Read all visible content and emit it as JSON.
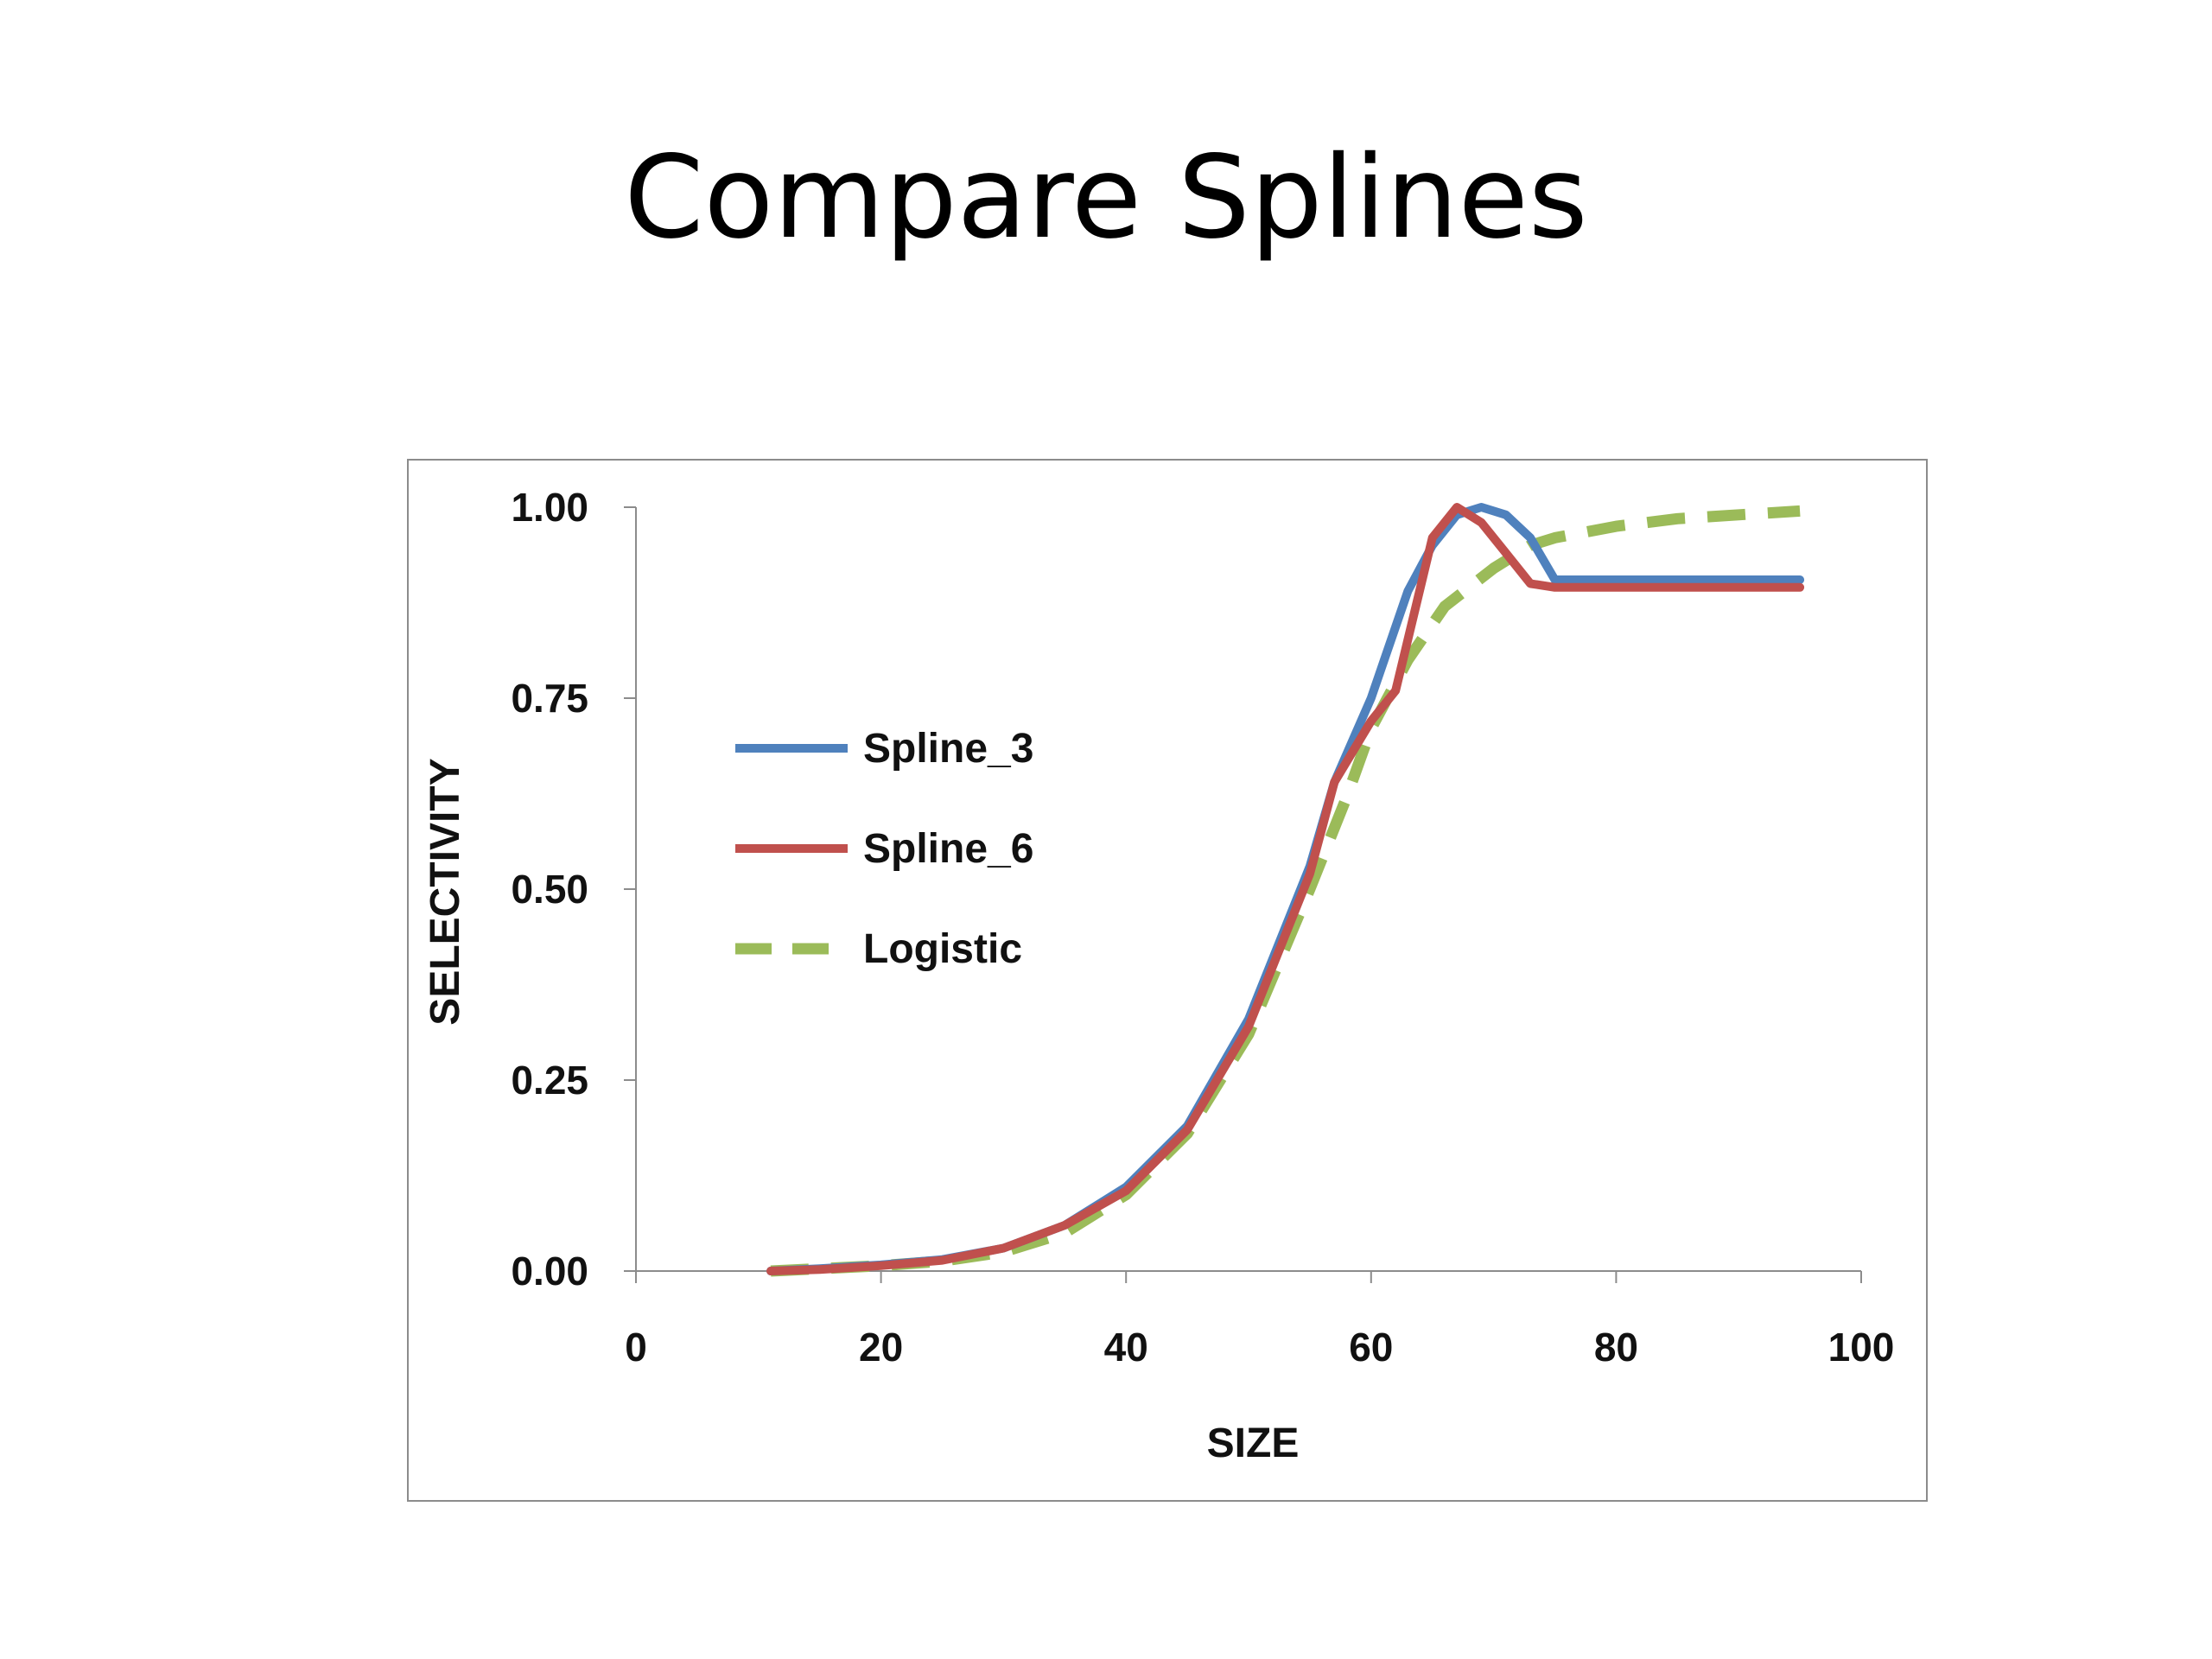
{
  "slide": {
    "title": "Compare Splines"
  },
  "chart_data": {
    "type": "line",
    "title": "",
    "xlabel": "SIZE",
    "ylabel": "SELECTIVITY",
    "xlim": [
      0,
      100
    ],
    "ylim": [
      0,
      1
    ],
    "x_ticks": [
      "0",
      "20",
      "40",
      "60",
      "80",
      "100"
    ],
    "y_ticks": [
      "0.00",
      "0.25",
      "0.50",
      "0.75",
      "1.00"
    ],
    "grid": false,
    "legend_position": "left-middle",
    "series": [
      {
        "name": "Spline_3",
        "color": "#4F81BD",
        "style": "solid",
        "x": [
          11,
          15,
          20,
          25,
          30,
          35,
          40,
          45,
          50,
          55,
          57,
          60,
          63,
          65,
          67,
          69,
          71,
          73,
          75,
          80,
          85,
          90,
          95
        ],
        "y": [
          0.0,
          0.003,
          0.008,
          0.015,
          0.03,
          0.06,
          0.11,
          0.19,
          0.33,
          0.53,
          0.64,
          0.75,
          0.89,
          0.95,
          0.99,
          1.0,
          0.99,
          0.96,
          0.905,
          0.905,
          0.905,
          0.905,
          0.905
        ]
      },
      {
        "name": "Spline_6",
        "color": "#C0504D",
        "style": "solid",
        "x": [
          11,
          15,
          20,
          25,
          30,
          35,
          40,
          45,
          50,
          55,
          57,
          60,
          62,
          65,
          67,
          69,
          71,
          73,
          75,
          80,
          85,
          90,
          95
        ],
        "y": [
          0.0,
          0.002,
          0.007,
          0.014,
          0.03,
          0.06,
          0.105,
          0.185,
          0.32,
          0.52,
          0.64,
          0.72,
          0.76,
          0.96,
          1.0,
          0.98,
          0.94,
          0.9,
          0.895,
          0.895,
          0.895,
          0.895,
          0.895
        ]
      },
      {
        "name": "Logistic",
        "color": "#9BBB59",
        "style": "dashed",
        "x": [
          11,
          15,
          20,
          25,
          30,
          35,
          40,
          45,
          50,
          55,
          58,
          60,
          63,
          66,
          70,
          73,
          75,
          80,
          85,
          90,
          95
        ],
        "y": [
          0.0,
          0.003,
          0.007,
          0.013,
          0.025,
          0.05,
          0.1,
          0.18,
          0.31,
          0.5,
          0.62,
          0.71,
          0.8,
          0.87,
          0.92,
          0.95,
          0.96,
          0.975,
          0.985,
          0.99,
          0.995
        ]
      }
    ]
  }
}
